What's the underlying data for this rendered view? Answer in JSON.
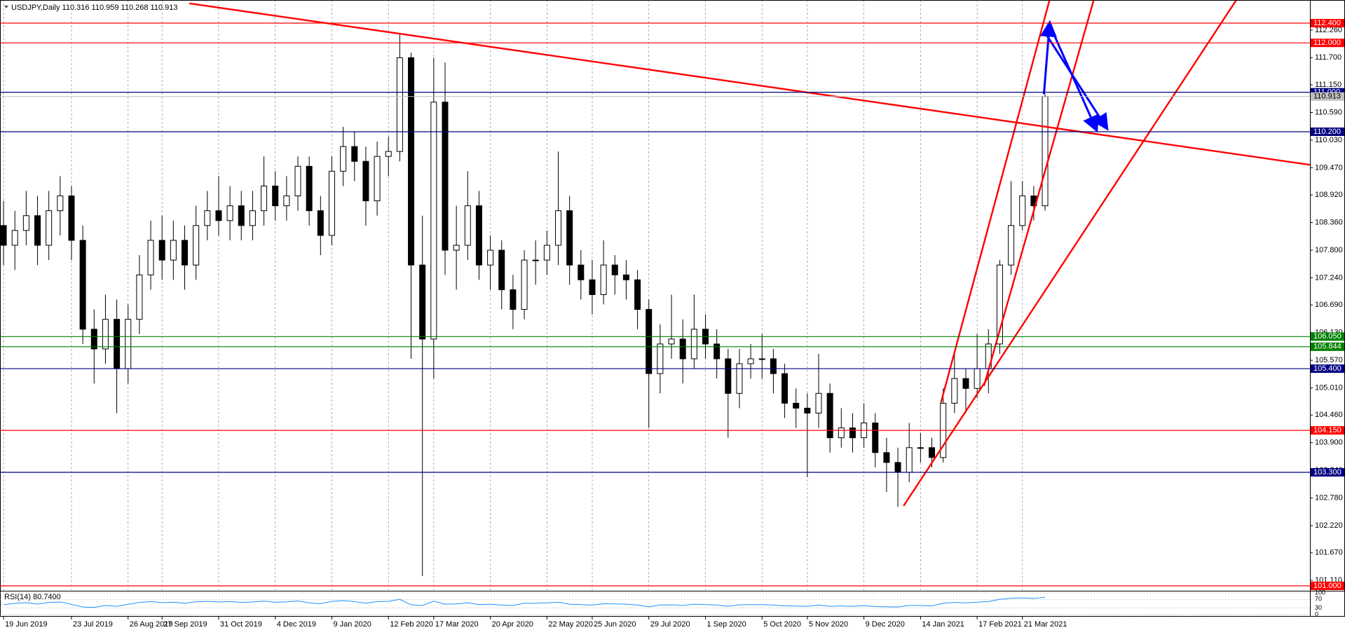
{
  "chart_data": {
    "type": "candlestick",
    "header": "USDJPY,Daily  110.316 110.959 110.268 110.913",
    "categories": [
      "19 Jun 2019",
      null,
      null,
      null,
      null,
      null,
      "23 Jul 2019",
      null,
      null,
      null,
      null,
      "26 Aug 2019",
      null,
      null,
      "27 Sep 2019",
      null,
      null,
      null,
      null,
      "31 Oct 2019",
      null,
      null,
      null,
      null,
      "4 Dec 2019",
      null,
      null,
      null,
      null,
      "9 Jan 2020",
      null,
      null,
      null,
      null,
      "12 Feb 2020",
      null,
      null,
      null,
      "17 Mar 2020",
      null,
      null,
      null,
      null,
      "20 Apr 2020",
      null,
      null,
      null,
      null,
      "22 May 2020",
      null,
      null,
      null,
      "25 Jun 2020",
      null,
      null,
      null,
      null,
      "29 Jul 2020",
      null,
      null,
      null,
      null,
      "1 Sep 2020",
      null,
      null,
      null,
      null,
      "5 Oct 2020",
      null,
      null,
      null,
      "5 Nov 2020",
      null,
      null,
      null,
      null,
      "9 Dec 2020",
      null,
      null,
      null,
      null,
      "14 Jan 2021",
      null,
      null,
      null,
      null,
      "17 Feb 2021",
      null,
      null,
      null,
      "21 Mar 2021",
      null,
      null
    ],
    "open": [
      108.3,
      107.9,
      108.2,
      108.5,
      107.9,
      108.6,
      108.9,
      108.0,
      106.2,
      105.8,
      106.4,
      105.4,
      106.4,
      107.3,
      108.0,
      107.6,
      108.0,
      107.5,
      108.3,
      108.6,
      108.4,
      108.7,
      108.3,
      108.6,
      109.1,
      108.7,
      108.9,
      109.5,
      108.6,
      108.1,
      109.4,
      109.9,
      109.6,
      108.8,
      109.7,
      109.8,
      111.7,
      107.5,
      106.0,
      110.8,
      107.8,
      107.9,
      108.7,
      107.5,
      107.8,
      107.0,
      106.6,
      107.6,
      107.6,
      107.9,
      108.6,
      107.5,
      107.2,
      106.9,
      107.5,
      107.3,
      107.2,
      106.6,
      105.3,
      105.9,
      106.0,
      105.6,
      106.2,
      105.9,
      105.6,
      104.9,
      105.5,
      105.6,
      105.6,
      105.3,
      104.7,
      104.6,
      104.5,
      104.9,
      104.0,
      104.2,
      104.0,
      104.3,
      103.7,
      103.5,
      103.3,
      103.8,
      103.8,
      103.6,
      104.7,
      105.2,
      105.0,
      105.4,
      105.9,
      107.5,
      108.3,
      108.9,
      108.7
    ],
    "high": [
      108.8,
      108.6,
      109.0,
      108.9,
      109.0,
      109.3,
      109.1,
      108.3,
      106.6,
      106.9,
      106.8,
      106.7,
      107.7,
      108.4,
      108.5,
      108.4,
      108.3,
      108.7,
      109.0,
      109.3,
      109.1,
      109.0,
      109.0,
      109.7,
      109.4,
      109.3,
      109.7,
      109.7,
      108.9,
      109.7,
      110.3,
      110.2,
      109.9,
      110.0,
      110.1,
      112.2,
      111.8,
      108.5,
      111.7,
      111.6,
      108.7,
      109.4,
      109.0,
      108.1,
      108.0,
      107.3,
      107.8,
      108.0,
      108.2,
      109.8,
      108.9,
      107.8,
      107.6,
      108.0,
      107.7,
      107.6,
      107.4,
      106.8,
      106.3,
      106.9,
      106.4,
      106.9,
      106.5,
      106.2,
      105.8,
      105.8,
      105.9,
      106.1,
      105.8,
      105.5,
      105.0,
      104.9,
      105.7,
      105.1,
      104.6,
      104.5,
      104.7,
      104.5,
      104.0,
      103.8,
      104.3,
      104.1,
      104.0,
      105.0,
      105.7,
      105.4,
      106.1,
      106.2,
      107.6,
      109.2,
      109.2,
      109.1,
      110.959
    ],
    "low": [
      107.5,
      107.4,
      107.9,
      107.5,
      107.6,
      108.1,
      107.6,
      105.9,
      105.1,
      105.5,
      104.5,
      105.1,
      106.1,
      107.0,
      107.2,
      107.2,
      107.0,
      107.2,
      108.0,
      108.1,
      108.0,
      108.0,
      108.0,
      108.3,
      108.4,
      108.4,
      108.6,
      108.3,
      107.7,
      107.9,
      109.1,
      109.2,
      108.3,
      108.5,
      109.3,
      109.6,
      105.6,
      101.2,
      105.2,
      107.3,
      107.0,
      107.6,
      107.2,
      107.0,
      106.6,
      106.2,
      106.4,
      107.1,
      107.3,
      107.5,
      107.1,
      106.8,
      106.5,
      106.7,
      106.9,
      106.8,
      106.2,
      104.2,
      104.9,
      105.6,
      105.1,
      105.4,
      105.6,
      105.2,
      104.0,
      104.6,
      105.2,
      105.2,
      104.9,
      104.4,
      104.2,
      103.2,
      104.2,
      103.7,
      103.8,
      103.7,
      103.8,
      103.4,
      102.9,
      102.6,
      103.1,
      103.5,
      103.4,
      103.5,
      104.5,
      104.5,
      104.8,
      104.9,
      105.7,
      107.3,
      108.2,
      108.4,
      108.6
    ],
    "close": [
      107.9,
      108.2,
      108.5,
      107.9,
      108.6,
      108.9,
      108.0,
      106.2,
      105.8,
      106.4,
      105.4,
      106.4,
      107.3,
      108.0,
      107.6,
      108.0,
      107.5,
      108.3,
      108.6,
      108.4,
      108.7,
      108.3,
      108.6,
      109.1,
      108.7,
      108.9,
      109.5,
      108.6,
      108.1,
      109.4,
      109.9,
      109.6,
      108.8,
      109.7,
      109.8,
      111.7,
      107.5,
      106.0,
      110.8,
      107.8,
      107.9,
      108.7,
      107.5,
      107.8,
      107.0,
      106.6,
      107.6,
      107.6,
      107.9,
      108.6,
      107.5,
      107.2,
      106.9,
      107.5,
      107.3,
      107.2,
      106.6,
      105.3,
      105.9,
      106.0,
      105.6,
      106.2,
      105.9,
      105.6,
      104.9,
      105.5,
      105.6,
      105.6,
      105.3,
      104.7,
      104.6,
      104.5,
      104.9,
      104.0,
      104.2,
      104.0,
      104.3,
      103.7,
      103.5,
      103.3,
      103.8,
      103.8,
      103.6,
      104.7,
      105.2,
      105.0,
      105.4,
      105.9,
      107.5,
      108.3,
      108.9,
      108.7,
      110.913
    ],
    "xlim": [
      -0.19,
      115.4
    ],
    "ylim": [
      100.915,
      112.812
    ],
    "yticks": [
      {
        "value": 112.26,
        "label": "112.260"
      },
      {
        "value": 111.7,
        "label": "111.700"
      },
      {
        "value": 111.15,
        "label": "111.150"
      },
      {
        "value": 110.59,
        "label": "110.590"
      },
      {
        "value": 110.03,
        "label": "110.030"
      },
      {
        "value": 109.47,
        "label": "109.470"
      },
      {
        "value": 108.92,
        "label": "108.920"
      },
      {
        "value": 108.36,
        "label": "108.360"
      },
      {
        "value": 107.8,
        "label": "107.800"
      },
      {
        "value": 107.24,
        "label": "107.240"
      },
      {
        "value": 106.69,
        "label": "106.690"
      },
      {
        "value": 106.13,
        "label": "106.130"
      },
      {
        "value": 105.57,
        "label": "105.570"
      },
      {
        "value": 105.01,
        "label": "105.010"
      },
      {
        "value": 104.46,
        "label": "104.460"
      },
      {
        "value": 103.9,
        "label": "103.900"
      },
      {
        "value": 103.34,
        "label": "103.340"
      },
      {
        "value": 102.78,
        "label": "102.780"
      },
      {
        "value": 102.22,
        "label": "102.220"
      },
      {
        "value": 101.67,
        "label": "101.670"
      },
      {
        "value": 101.11,
        "label": "101.110"
      }
    ],
    "grid": true,
    "current_price": 110.913,
    "levels": [
      {
        "value": 112.4,
        "label": "112.400",
        "color": "#ff0000"
      },
      {
        "value": 112.0,
        "label": "112.000",
        "color": "#ff0000"
      },
      {
        "value": 111.0,
        "label": "111.000",
        "color": "#000080"
      },
      {
        "value": 110.2,
        "label": "110.200",
        "color": "#000080"
      },
      {
        "value": 106.05,
        "label": "106.050",
        "color": "#008000"
      },
      {
        "value": 105.844,
        "label": "105.844",
        "color": "#008000"
      },
      {
        "value": 105.4,
        "label": "105.400",
        "color": "#000080"
      },
      {
        "value": 104.15,
        "label": "104.150",
        "color": "#ff0000"
      },
      {
        "value": 103.3,
        "label": "103.300",
        "color": "#000080"
      },
      {
        "value": 101.0,
        "label": "101.000",
        "color": "#ff0000"
      }
    ],
    "trend_lines": [
      {
        "color": "#ff0000",
        "x": [
          16.4,
          115.4
        ],
        "y": [
          112.8,
          109.53
        ]
      },
      {
        "color": "#ff0000",
        "x": [
          82.8,
          92.4
        ],
        "y": [
          104.71,
          112.87
        ]
      },
      {
        "color": "#ff0000",
        "x": [
          86.6,
          96.3
        ],
        "y": [
          105.05,
          112.87
        ]
      },
      {
        "color": "#ff0000",
        "x": [
          79.5,
          108.9
        ],
        "y": [
          102.62,
          112.87
        ]
      }
    ],
    "arrows": [
      {
        "color": "#0000ff",
        "x": [
          91.9,
          92.4
        ],
        "y": [
          110.96,
          112.38
        ]
      },
      {
        "color": "#0000ff",
        "x": [
          92.4,
          96.5
        ],
        "y": [
          112.37,
          110.26
        ]
      },
      {
        "color": "#0000ff",
        "x": [
          92.1,
          97.4
        ],
        "y": [
          112.17,
          110.29
        ]
      }
    ],
    "rsi": {
      "label": "RSI(14) 80.7400",
      "color": "#1e90ff",
      "ylim": [
        0,
        100
      ],
      "yticks": [
        0,
        30,
        70,
        100
      ],
      "values": [
        45,
        52,
        55,
        48,
        56,
        58,
        47,
        35,
        33,
        42,
        38,
        47,
        56,
        60,
        55,
        57,
        52,
        59,
        61,
        58,
        60,
        56,
        58,
        62,
        57,
        59,
        63,
        54,
        50,
        61,
        64,
        60,
        52,
        60,
        61,
        70,
        45,
        42,
        62,
        48,
        49,
        54,
        46,
        48,
        44,
        42,
        52,
        52,
        54,
        57,
        48,
        46,
        44,
        50,
        49,
        48,
        44,
        36,
        44,
        45,
        42,
        48,
        46,
        44,
        38,
        45,
        46,
        46,
        44,
        40,
        39,
        38,
        44,
        38,
        40,
        38,
        41,
        37,
        36,
        35,
        42,
        42,
        40,
        52,
        56,
        54,
        57,
        60,
        70,
        75,
        77,
        74,
        80.74
      ]
    }
  }
}
